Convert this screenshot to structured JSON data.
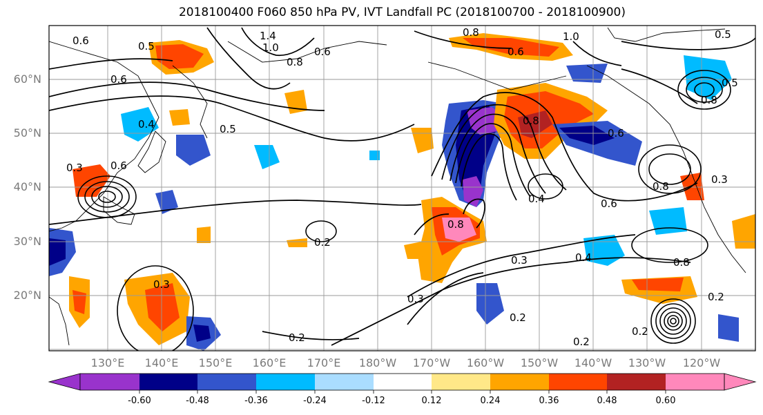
{
  "title": "2018100400 F060 850 hPa PV, IVT Landfall PC (2018100700 - 2018100900)",
  "lat_labels": [
    "60°N",
    "50°N",
    "40°N",
    "30°N",
    "20°N"
  ],
  "lon_labels": [
    "130°E",
    "140°E",
    "150°E",
    "160°E",
    "170°E",
    "180°W",
    "170°W",
    "160°W",
    "150°W",
    "140°W",
    "130°W",
    "120°W"
  ],
  "contour_labels": [
    "0.6",
    "0.5",
    "1.4",
    "1.0",
    "0.8",
    "0.6",
    "0.8",
    "1.0",
    "0.5",
    "0.6",
    "0.6",
    "0.4",
    "0.5",
    "0.3",
    "0.6",
    "0.8",
    "0.6",
    "0.8",
    "0.4",
    "0.6",
    "0.8",
    "0.3",
    "0.8",
    "0.2",
    "0.3",
    "0.4",
    "0.8",
    "0.3",
    "0.2",
    "0.2",
    "0.2",
    "0.2",
    "0.2",
    "0.3",
    "0.5"
  ],
  "colorbar": {
    "colors": [
      "#9933cc",
      "#000088",
      "#3355cc",
      "#00bbff",
      "#aaddff",
      "#ffffff",
      "#ffe888",
      "#ffa500",
      "#ff4500",
      "#b22222",
      "#ff88bb"
    ],
    "tick_labels": [
      "-0.60",
      "-0.48",
      "-0.36",
      "-0.24",
      "-0.12",
      "0.12",
      "0.24",
      "0.36",
      "0.48",
      "0.60"
    ]
  }
}
